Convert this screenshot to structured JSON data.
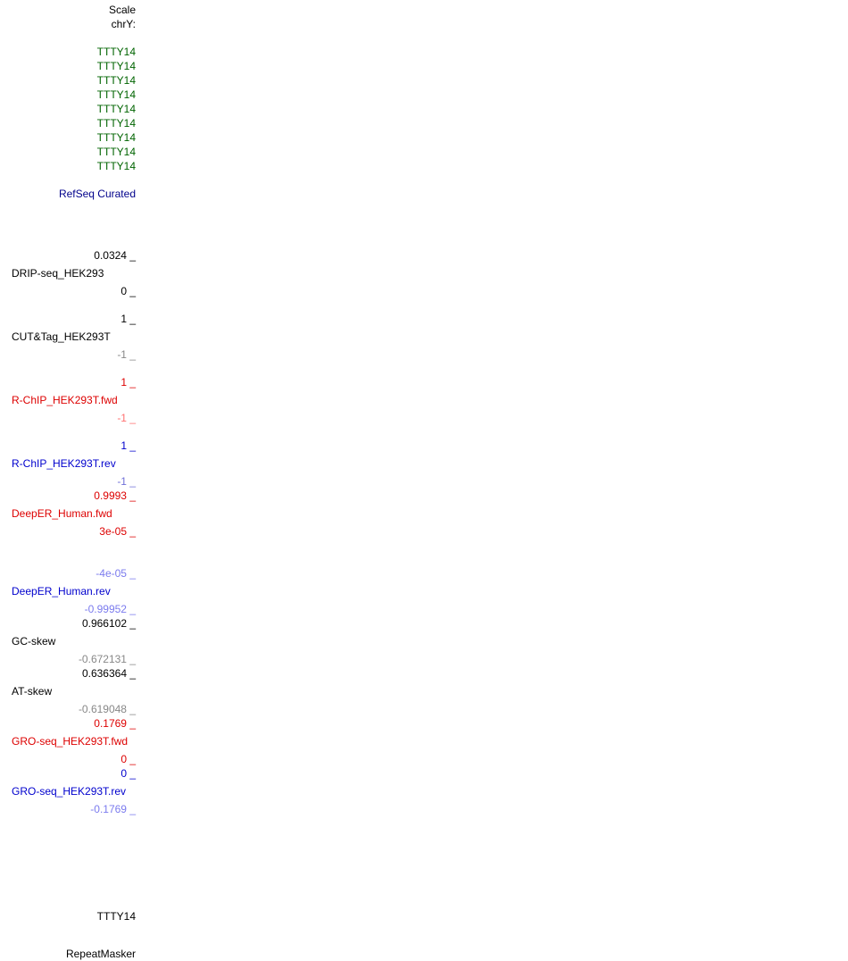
{
  "header": {
    "scale_label": "Scale",
    "chrom_label": "chrY:"
  },
  "gene_items": [
    "TTTY14",
    "TTTY14",
    "TTTY14",
    "TTTY14",
    "TTTY14",
    "TTTY14",
    "TTTY14",
    "TTTY14",
    "TTTY14"
  ],
  "refseq_label": "RefSeq Curated",
  "tracks": {
    "drip": {
      "max": "0.0324 _",
      "name": "DRIP-seq_HEK293",
      "min": "0 _"
    },
    "cuttag": {
      "max": "1 _",
      "name": "CUT&Tag_HEK293T",
      "min": "-1 _"
    },
    "rchip_fwd": {
      "max": "1 _",
      "name": "R-ChIP_HEK293T.fwd",
      "min": "-1 _"
    },
    "rchip_rev": {
      "max": "1 _",
      "name": "R-ChIP_HEK293T.rev",
      "min": "-1 _"
    },
    "deeper_fwd": {
      "max": "0.9993 _",
      "name": "DeepER_Human.fwd",
      "min": "3e-05 _"
    },
    "deeper_rev": {
      "max": "-4e-05 _",
      "name": "DeepER_Human.rev",
      "min": "-0.99952 _"
    },
    "gc_skew": {
      "max": "0.966102 _",
      "name": "GC-skew",
      "min": "-0.672131 _"
    },
    "at_skew": {
      "max": "0.636364 _",
      "name": "AT-skew",
      "min": "-0.619048 _"
    },
    "gro_fwd": {
      "max": "0.1769 _",
      "name": "GRO-seq_HEK293T.fwd",
      "min": "0 _"
    },
    "gro_rev": {
      "max": "0 _",
      "name": "GRO-seq_HEK293T.rev",
      "min": "-0.1769 _"
    }
  },
  "bottom_gene": "TTTY14",
  "repeatmasker_label": "RepeatMasker",
  "colors": {
    "gene_green": "#006400",
    "refseq_navy": "#00008b",
    "fwd_red": "#dd0000",
    "rev_blue": "#0000cd"
  }
}
